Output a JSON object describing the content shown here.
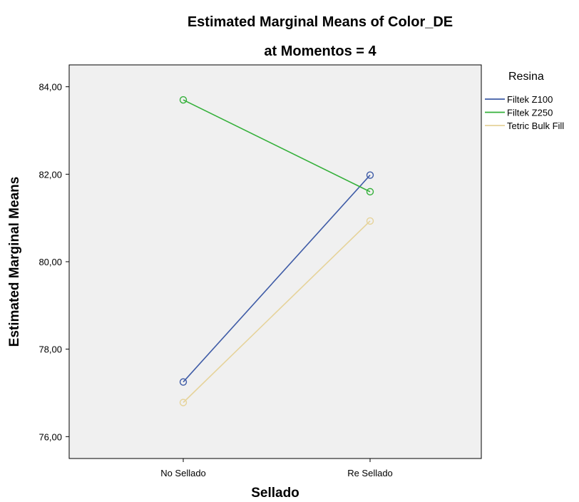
{
  "chart_data": {
    "type": "line",
    "title": "Estimated Marginal Means of Color_DE",
    "subtitle": "at Momentos = 4",
    "xlabel": "Sellado",
    "ylabel": "Estimated Marginal Means",
    "categories": [
      "No Sellado",
      "Re Sellado"
    ],
    "ylim": [
      75.5,
      84.5
    ],
    "yticks": [
      76,
      78,
      80,
      82,
      84
    ],
    "ytick_labels": [
      "76,00",
      "78,00",
      "80,00",
      "82,00",
      "84,00"
    ],
    "grid": false,
    "markers": "open-circle",
    "plot_background": "#f0f0f0",
    "legend": {
      "title": "Resina",
      "placement": "right"
    },
    "series": [
      {
        "name": "Filtek Z100",
        "values": [
          77.25,
          81.98
        ],
        "color": "#3e5ba6"
      },
      {
        "name": "Filtek Z250",
        "values": [
          83.7,
          81.6
        ],
        "color": "#34b03a"
      },
      {
        "name": "Tetric Bulk Fill",
        "values": [
          76.78,
          80.93
        ],
        "color": "#e6d39a"
      }
    ]
  }
}
